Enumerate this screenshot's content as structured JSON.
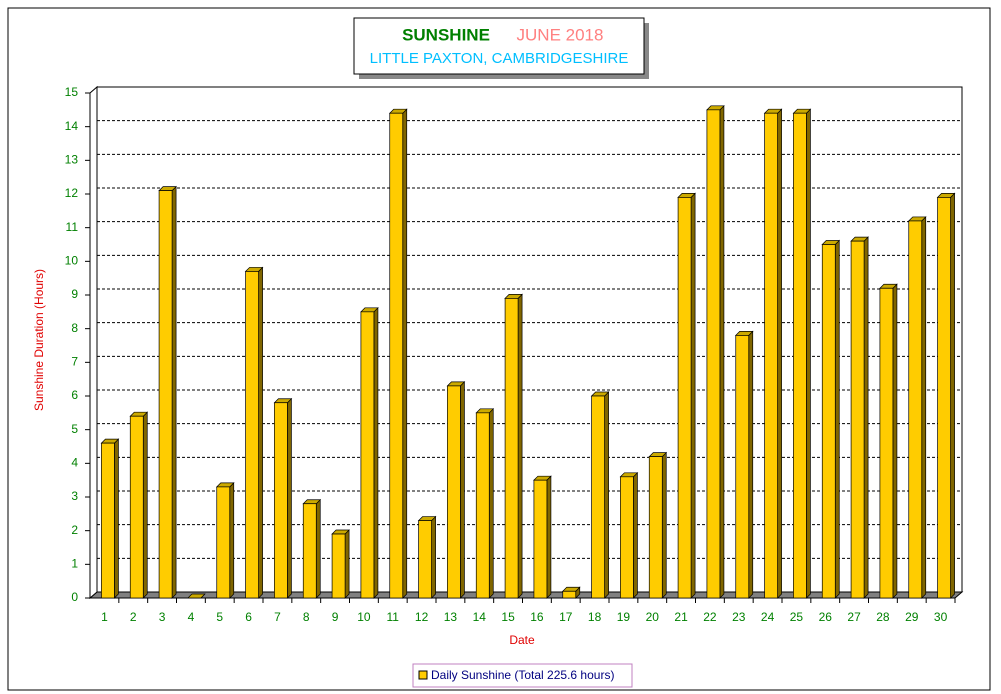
{
  "chart_data": {
    "type": "bar",
    "title": "SUNSHINE",
    "period": "JUNE 2018",
    "subtitle": "LITTLE PAXTON, CAMBRIDGESHIRE",
    "x_label": "Date",
    "y_label": "Sunshine Duration (Hours)",
    "categories": [
      "1",
      "2",
      "3",
      "4",
      "5",
      "6",
      "7",
      "8",
      "9",
      "10",
      "11",
      "12",
      "13",
      "14",
      "15",
      "16",
      "17",
      "18",
      "19",
      "20",
      "21",
      "22",
      "23",
      "24",
      "25",
      "26",
      "27",
      "28",
      "29",
      "30"
    ],
    "series": [
      {
        "name": "Daily Sunshine (Total 225.6 hours)",
        "color": "#ffcc00",
        "values": [
          4.6,
          5.4,
          12.1,
          0,
          3.3,
          9.7,
          5.8,
          2.8,
          1.9,
          8.5,
          14.4,
          2.3,
          6.3,
          5.5,
          8.9,
          3.5,
          0.2,
          6.0,
          3.6,
          4.2,
          11.9,
          14.5,
          7.8,
          14.4,
          14.4,
          10.5,
          10.6,
          9.2,
          11.2,
          11.9
        ]
      }
    ],
    "ylim": [
      0,
      15
    ],
    "yticks": [
      0,
      1,
      2,
      3,
      4,
      5,
      6,
      7,
      8,
      9,
      10,
      11,
      12,
      13,
      14,
      15
    ],
    "grid": true
  }
}
